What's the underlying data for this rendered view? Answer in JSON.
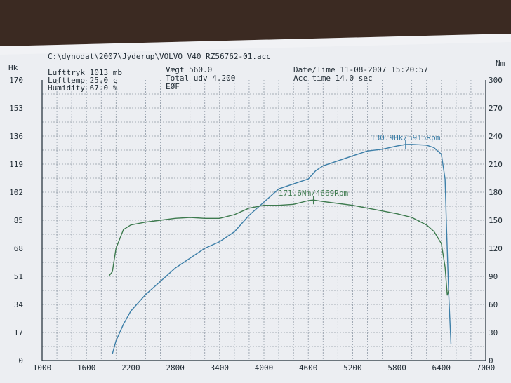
{
  "header": {
    "file_path": "C:\\dynodat\\2007\\Jyderup\\VOLVO V40 RZ56762-01.acc",
    "lufttryk": "Lufttryk  1013 mb",
    "lufttemp": "Lufttemp  25.0 c",
    "humidity": "Humidity  67.0 %",
    "vaegt": "Vægt      560.0",
    "total_udv": "Total udv 4.200",
    "eof": "EØF",
    "datetime": "Date/Time  11-08-2007 15:20:57",
    "acc_time": "Acc time  14.0 sec"
  },
  "colors": {
    "power": "#3d7fa8",
    "torque": "#3d7a4e",
    "paper": "#eceef2",
    "ink": "#1f2a33"
  },
  "chart_data": {
    "type": "line",
    "title": "",
    "xlabel": "",
    "ylabel": "Hk",
    "y2label": "Nm",
    "xlim": [
      1000,
      7000
    ],
    "ylim": [
      0,
      170
    ],
    "y2lim": [
      0,
      300
    ],
    "grid": true,
    "x_ticks": [
      "1000",
      "1600",
      "2200",
      "2800",
      "3400",
      "4000",
      "4600",
      "5200",
      "5800",
      "6400",
      "7000"
    ],
    "x_tick_values": [
      1000,
      1600,
      2200,
      2800,
      3400,
      4000,
      4600,
      5200,
      5800,
      6400,
      7000
    ],
    "y_ticks": [
      "0",
      "17",
      "34",
      "51",
      "68",
      "85",
      "102",
      "119",
      "136",
      "153",
      "170"
    ],
    "y_tick_values": [
      0,
      17,
      34,
      51,
      68,
      85,
      102,
      119,
      136,
      153,
      170
    ],
    "y2_ticks": [
      "0",
      "30",
      "60",
      "90",
      "120",
      "150",
      "180",
      "210",
      "240",
      "270",
      "300"
    ],
    "y2_tick_values": [
      0,
      30,
      60,
      90,
      120,
      150,
      180,
      210,
      240,
      270,
      300
    ],
    "series": [
      {
        "key": "power",
        "axis": "left",
        "annotation": "130.9Hk/5915Rpm",
        "annotation_x": 5915,
        "annotation_y": 130.9,
        "x": [
          1950,
          2000,
          2100,
          2200,
          2400,
          2600,
          2800,
          3000,
          3200,
          3400,
          3600,
          3800,
          4000,
          4200,
          4400,
          4600,
          4700,
          4800,
          5000,
          5200,
          5400,
          5600,
          5800,
          5915,
          6000,
          6200,
          6300,
          6400,
          6450,
          6470,
          6500,
          6530
        ],
        "y": [
          4,
          12,
          22,
          30,
          40,
          48,
          56,
          62,
          68,
          72,
          78,
          88,
          96,
          104,
          107,
          110,
          115,
          118,
          121,
          124,
          127,
          128,
          130,
          130.9,
          131,
          130.5,
          129,
          125,
          110,
          80,
          40,
          10
        ]
      },
      {
        "key": "torque",
        "axis": "right",
        "annotation": "171.6Nm/4669Rpm",
        "annotation_x": 4669,
        "annotation_y": 171.6,
        "x": [
          1900,
          1950,
          2000,
          2100,
          2200,
          2400,
          2600,
          2800,
          3000,
          3200,
          3400,
          3600,
          3800,
          4000,
          4200,
          4400,
          4600,
          4669,
          4800,
          5000,
          5200,
          5400,
          5600,
          5800,
          6000,
          6200,
          6300,
          6400,
          6450,
          6480,
          6500
        ],
        "y": [
          90,
          95,
          120,
          140,
          145,
          148,
          150,
          152,
          153,
          152,
          152,
          156,
          163,
          166,
          166,
          167,
          171,
          171.6,
          170,
          168,
          166,
          163,
          160,
          157,
          153,
          145,
          138,
          125,
          100,
          70,
          75
        ]
      }
    ]
  }
}
